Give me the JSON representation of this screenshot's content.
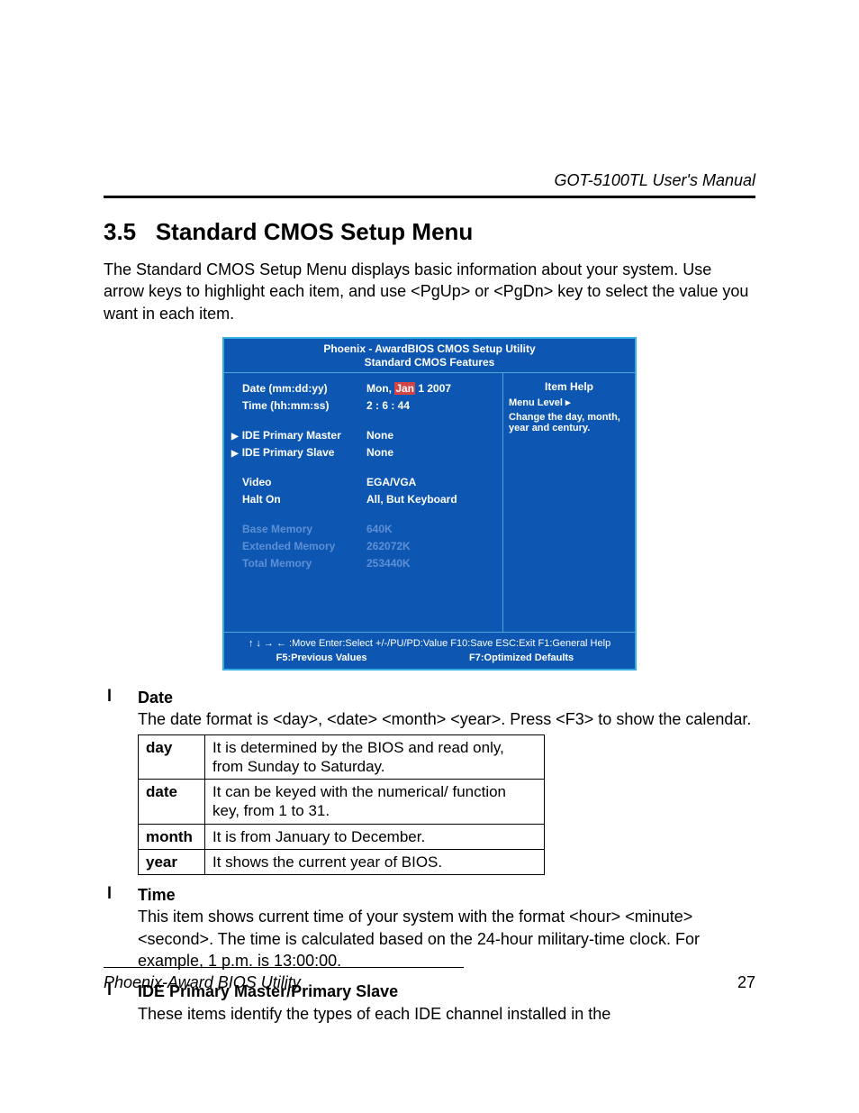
{
  "header": {
    "manual_title": "GOT-5100TL User's Manual"
  },
  "heading": {
    "number": "3.5",
    "title": "Standard CMOS Setup Menu"
  },
  "intro": "The Standard CMOS Setup Menu displays basic information about your system. Use arrow keys to highlight each item, and use <PgUp> or <PgDn> key to select the value you want in each item.",
  "bios": {
    "title_line1": "Phoenix - AwardBIOS CMOS Setup Utility",
    "title_line2": "Standard CMOS Features",
    "rows": [
      {
        "label": "Date (mm:dd:yy)",
        "val_pre": "Mon, ",
        "val_hl": "Jan",
        "val_post": " 1 2007",
        "tri": false,
        "dim": false
      },
      {
        "label": "Time (hh:mm:ss)",
        "val": "2 : 6 : 44",
        "tri": false,
        "dim": false
      },
      {
        "spacer": true
      },
      {
        "label": "IDE Primary Master",
        "val": "None",
        "tri": true,
        "dim": false
      },
      {
        "label": "IDE Primary Slave",
        "val": "None",
        "tri": true,
        "dim": false
      },
      {
        "spacer": true
      },
      {
        "label": "Video",
        "val": "EGA/VGA",
        "tri": false,
        "dim": false
      },
      {
        "label": "Halt On",
        "val": "All, But Keyboard",
        "tri": false,
        "dim": false
      },
      {
        "spacer": true
      },
      {
        "label": "Base Memory",
        "val": "640K",
        "tri": false,
        "dim": true
      },
      {
        "label": "Extended Memory",
        "val": "262072K",
        "tri": false,
        "dim": true
      },
      {
        "label": "Total Memory",
        "val": "253440K",
        "tri": false,
        "dim": true
      }
    ],
    "help": {
      "title": "Item Help",
      "menu_level": "Menu Level  ▸",
      "desc": "Change the day, month, year and century."
    },
    "footer": {
      "nav": "↑ ↓ → ← :Move  Enter:Select  +/-/PU/PD:Value  F10:Save  ESC:Exit  F1:General Help",
      "f5": "F5:Previous Values",
      "f7": "F7:Optimized Defaults"
    },
    "colors": {
      "bg": "#0d57b3",
      "border": "#34aee0",
      "divider": "#4da5d8",
      "text": "#ffffff",
      "dim": "#5e8fd4",
      "highlight": "#d44444"
    }
  },
  "bullets": [
    {
      "title": "Date",
      "text": "The date format is <day>, <date> <month> <year>. Press <F3> to show the calendar."
    },
    {
      "title": "Time",
      "text": "This item shows current time of your system with the format <hour> <minute> <second>.  The time is calculated based on the 24-hour military-time clock. For example, 1 p.m. is 13:00:00."
    },
    {
      "title": "IDE Primary Master/Primary Slave",
      "text": "These items identify the types of each IDE channel installed in the"
    }
  ],
  "date_table": {
    "rows": [
      {
        "k": "day",
        "v": "It is determined by the BIOS and read only, from Sunday to Saturday."
      },
      {
        "k": "date",
        "v": "It can be keyed with the numerical/ function key, from 1 to 31."
      },
      {
        "k": "month",
        "v": "It is from January to December."
      },
      {
        "k": "year",
        "v": "It shows the current year of BIOS."
      }
    ]
  },
  "footer": {
    "section": "Phoenix-Award BIOS Utility",
    "page": "27"
  }
}
